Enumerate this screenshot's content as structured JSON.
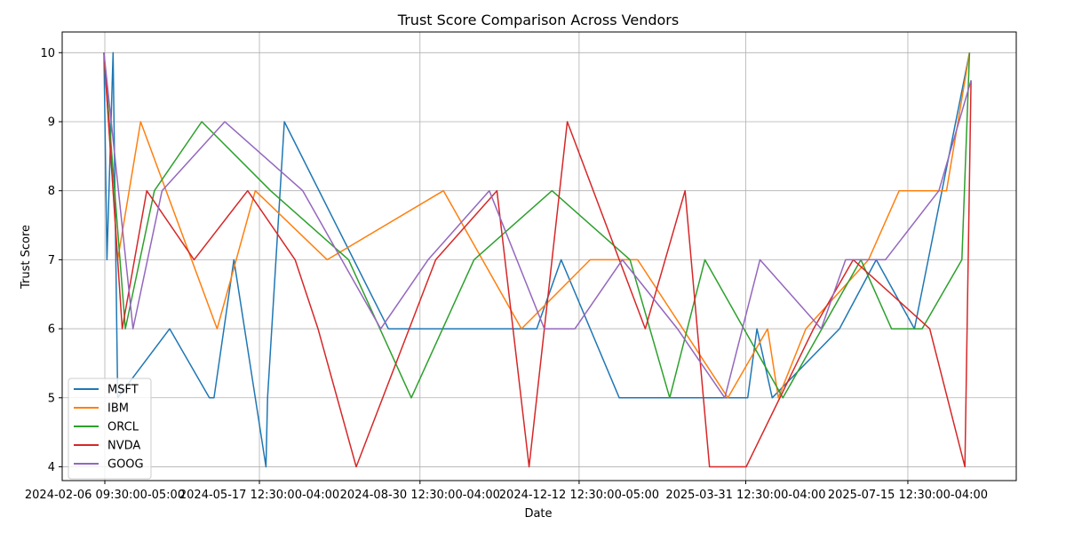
{
  "chart_data": {
    "type": "line",
    "title": "Trust Score Comparison Across Vendors",
    "xlabel": "Date",
    "ylabel": "Trust Score",
    "ylim": [
      3.8,
      10.3
    ],
    "y_ticks": [
      4,
      5,
      6,
      7,
      8,
      9,
      10
    ],
    "x_range": [
      "2024-02-06T09:30:00-05:00",
      "2025-08-27T12:30:00-04:00"
    ],
    "x_ticks": [
      {
        "date": "2024-02-06T09:30:00-05:00",
        "label": "2024-02-06 09:30:00-05:00"
      },
      {
        "date": "2024-05-17T12:30:00-04:00",
        "label": "2024-05-17 12:30:00-04:00"
      },
      {
        "date": "2024-08-30T12:30:00-04:00",
        "label": "2024-08-30 12:30:00-04:00"
      },
      {
        "date": "2024-12-12T12:30:00-05:00",
        "label": "2024-12-12 12:30:00-05:00"
      },
      {
        "date": "2025-03-31T12:30:00-04:00",
        "label": "2025-03-31 12:30:00-04:00"
      },
      {
        "date": "2025-07-15T12:30:00-04:00",
        "label": "2025-07-15 12:30:00-04:00"
      }
    ],
    "grid": true,
    "legend_position": "bottom-left",
    "series": [
      {
        "name": "MSFT",
        "color": "#1f77b4",
        "x": [
          "2024-02-06",
          "2024-02-08",
          "2024-02-12",
          "2024-02-15",
          "2024-03-20",
          "2024-04-15",
          "2024-04-18",
          "2024-05-01",
          "2024-05-22",
          "2024-05-23",
          "2024-06-03",
          "2024-08-10",
          "2024-09-20",
          "2024-10-25",
          "2024-11-15",
          "2024-12-01",
          "2025-01-08",
          "2025-02-01",
          "2025-03-10",
          "2025-03-15",
          "2025-04-02",
          "2025-04-08",
          "2025-04-18",
          "2025-06-01",
          "2025-06-25",
          "2025-07-20",
          "2025-08-25"
        ],
        "y": [
          10,
          7,
          10,
          5,
          6,
          5,
          5,
          7,
          4,
          5,
          9,
          6,
          6,
          6,
          6,
          7,
          5,
          5,
          5,
          5,
          5,
          6,
          5,
          6,
          7,
          6,
          10
        ]
      },
      {
        "name": "IBM",
        "color": "#ff7f0e",
        "x": [
          "2024-02-06",
          "2024-02-15",
          "2024-03-01",
          "2024-04-20",
          "2024-05-15",
          "2024-07-01",
          "2024-09-15",
          "2024-11-05",
          "2024-12-20",
          "2025-01-20",
          "2025-03-20",
          "2025-04-15",
          "2025-04-22",
          "2025-05-10",
          "2025-06-20",
          "2025-07-10",
          "2025-08-10",
          "2025-08-25"
        ],
        "y": [
          10,
          7,
          9,
          6,
          8,
          7,
          8,
          6,
          7,
          7,
          5,
          6,
          5,
          6,
          7,
          8,
          8,
          10
        ]
      },
      {
        "name": "ORCL",
        "color": "#2ca02c",
        "x": [
          "2024-02-06",
          "2024-02-20",
          "2024-03-10",
          "2024-04-10",
          "2024-05-25",
          "2024-07-15",
          "2024-08-25",
          "2024-10-05",
          "2024-11-25",
          "2025-01-15",
          "2025-02-10",
          "2025-03-05",
          "2025-04-25",
          "2025-06-15",
          "2025-07-05",
          "2025-07-25",
          "2025-08-20",
          "2025-08-25"
        ],
        "y": [
          10,
          6,
          8,
          9,
          8,
          7,
          5,
          7,
          8,
          7,
          5,
          7,
          5,
          7,
          6,
          6,
          7,
          10
        ]
      },
      {
        "name": "NVDA",
        "color": "#d62728",
        "x": [
          "2024-02-06",
          "2024-02-18",
          "2024-03-05",
          "2024-04-05",
          "2024-05-10",
          "2024-06-10",
          "2024-06-25",
          "2024-07-20",
          "2024-09-10",
          "2024-10-20",
          "2024-11-10",
          "2024-12-05",
          "2025-01-25",
          "2025-02-20",
          "2025-03-08",
          "2025-03-25",
          "2025-04-01",
          "2025-05-15",
          "2025-06-10",
          "2025-07-30",
          "2025-08-22",
          "2025-08-26"
        ],
        "y": [
          10,
          6,
          8,
          7,
          8,
          7,
          6,
          4,
          7,
          8,
          4,
          9,
          6,
          8,
          4,
          4,
          4,
          6,
          7,
          6,
          4,
          9.6
        ]
      },
      {
        "name": "GOOG",
        "color": "#9467bd",
        "x": [
          "2024-02-06",
          "2024-02-25",
          "2024-03-15",
          "2024-04-25",
          "2024-06-15",
          "2024-08-05",
          "2024-09-05",
          "2024-10-15",
          "2024-11-20",
          "2024-12-10",
          "2025-01-10",
          "2025-02-15",
          "2025-03-18",
          "2025-04-10",
          "2025-05-20",
          "2025-06-05",
          "2025-07-01",
          "2025-08-05",
          "2025-08-26"
        ],
        "y": [
          10,
          6,
          8,
          9,
          8,
          6,
          7,
          8,
          6,
          6,
          7,
          6,
          5,
          7,
          6,
          7,
          7,
          8,
          9.6
        ]
      }
    ]
  }
}
